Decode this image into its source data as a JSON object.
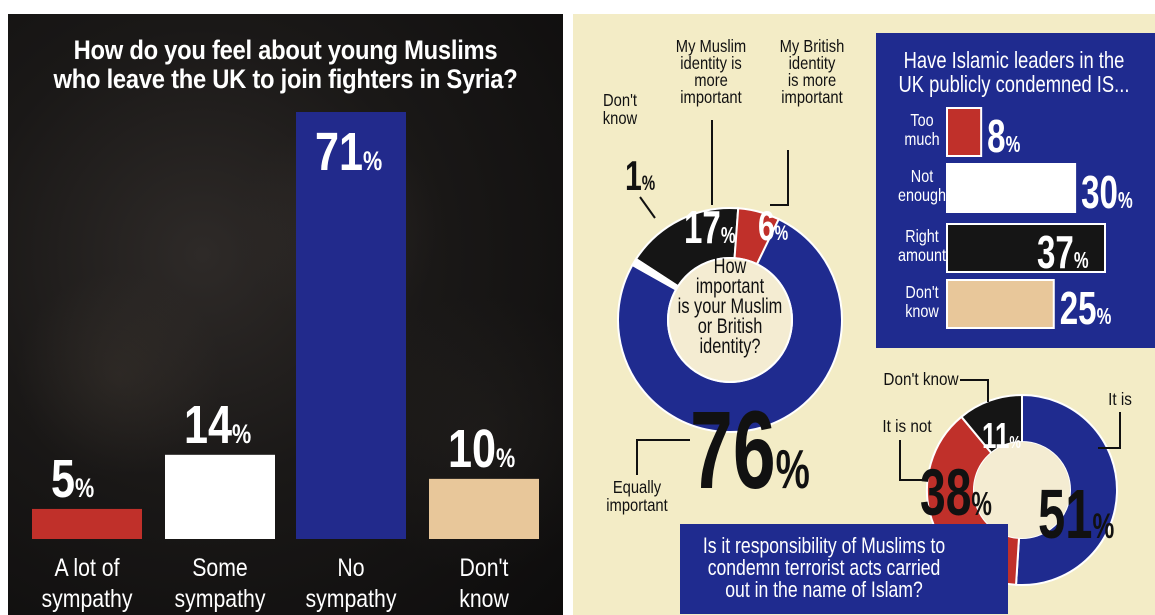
{
  "left_chart": {
    "title_line1": "How do you feel about young Muslims",
    "title_line2": "who leave the UK to join fighters in Syria?"
  },
  "right_panel": {
    "identity_question": [
      "How",
      "important",
      "is your Muslim",
      "or British",
      "identity?"
    ],
    "condemn_title": [
      "Have Islamic leaders in the",
      "UK publicly condemned IS..."
    ],
    "responsibility_question": [
      "Is it responsibility of Muslims to",
      "condemn terrorist acts carried",
      "out in the name of Islam?"
    ]
  },
  "chart_data": [
    {
      "type": "bar",
      "title": "How do you feel about young Muslims who leave the UK to join fighters in Syria?",
      "categories": [
        "A lot of sympathy",
        "Some sympathy",
        "No sympathy",
        "Don't know"
      ],
      "category_lines": [
        [
          "A lot of",
          "sympathy"
        ],
        [
          "Some",
          "sympathy"
        ],
        [
          "No",
          "sympathy"
        ],
        [
          "Don't",
          "know"
        ]
      ],
      "values": [
        5,
        14,
        71,
        10
      ],
      "value_labels": [
        "5",
        "14",
        "71",
        "10"
      ],
      "unit": "%",
      "colors": [
        "#c0302a",
        "#ffffff",
        "#222a8c",
        "#e8c79a"
      ],
      "ylim": [
        0,
        71
      ]
    },
    {
      "type": "pie",
      "title": "How important is your Muslim or British identity?",
      "labels": [
        "Equally important",
        "My Muslim identity is more important",
        "My British identity is more important",
        "Don't know"
      ],
      "values": [
        76,
        17,
        6,
        1
      ],
      "value_labels": [
        "76",
        "17",
        "6",
        "1"
      ],
      "unit": "%",
      "colors": [
        "#1f2b8f",
        "#151515",
        "#c0302a",
        "#ffffff"
      ],
      "callouts": [
        [
          "Don't",
          "know"
        ],
        [
          "My Muslim",
          "identity is",
          "more",
          "important"
        ],
        [
          "My British",
          "identity",
          "is more",
          "important"
        ],
        [
          "Equally",
          "important"
        ]
      ]
    },
    {
      "type": "bar",
      "title": "Have Islamic leaders in the UK publicly condemned IS...",
      "categories": [
        "Too much",
        "Not enough",
        "Right amount",
        "Don't know"
      ],
      "category_lines": [
        [
          "Too",
          "much"
        ],
        [
          "Not",
          "enough"
        ],
        [
          "Right",
          "amount"
        ],
        [
          "Don't",
          "know"
        ]
      ],
      "values": [
        8,
        30,
        37,
        25
      ],
      "value_labels": [
        "8",
        "30",
        "37",
        "25"
      ],
      "unit": "%",
      "colors": [
        "#c0302a",
        "#ffffff",
        "#151515",
        "#e8c79a"
      ],
      "orientation": "horizontal"
    },
    {
      "type": "pie",
      "title": "Is it responsibility of Muslims to condemn terrorist acts carried out in the name of Islam?",
      "labels": [
        "It is",
        "It is not",
        "Don't know"
      ],
      "values": [
        51,
        38,
        11
      ],
      "value_labels": [
        "51",
        "38",
        "11"
      ],
      "unit": "%",
      "colors": [
        "#1f2b8f",
        "#c0302a",
        "#151515"
      ]
    }
  ]
}
